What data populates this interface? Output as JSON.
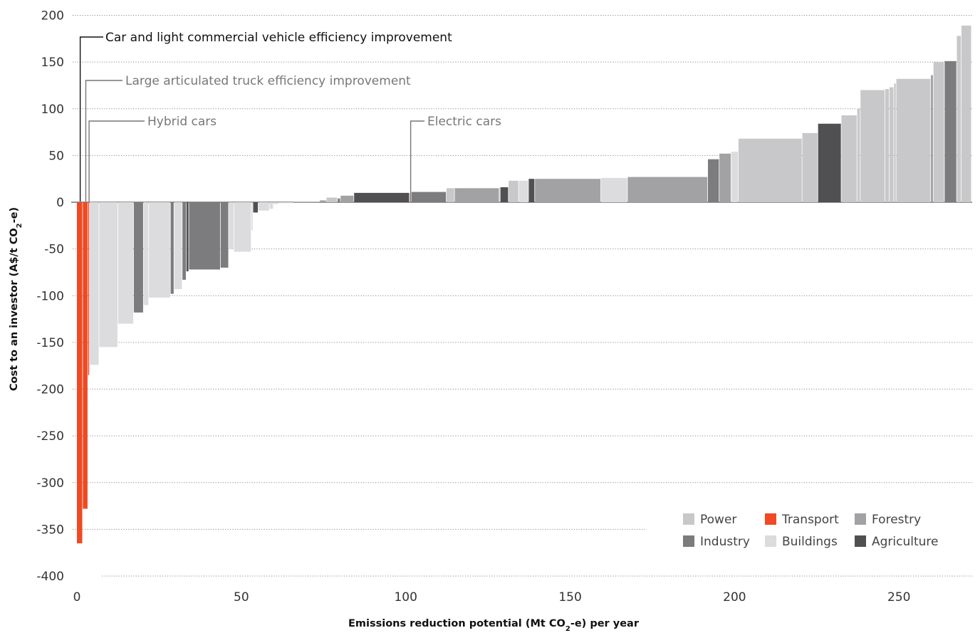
{
  "chart_data": {
    "type": "bar",
    "subtype": "marginal-abatement-cost-curve",
    "title": "",
    "xlabel": "Emissions reduction potential (Mt CO2-e) per year",
    "ylabel": "Cost to an investor (A$/t CO2-e)",
    "xlim": [
      0,
      273
    ],
    "ylim": [
      -400,
      200
    ],
    "x_ticks": [
      "0",
      "50",
      "100",
      "150",
      "200",
      "250"
    ],
    "y_ticks": [
      "200",
      "150",
      "100",
      "50",
      "0",
      "-50",
      "-100",
      "-150",
      "-200",
      "-250",
      "-300",
      "-350",
      "-400"
    ],
    "grid": "horizontal dotted",
    "legend_position": "bottom-right",
    "sector_colors": {
      "Power": "#c8c8ca",
      "Transport": "#ef4a24",
      "Forestry": "#a2a2a4",
      "Industry": "#7c7c7e",
      "Buildings": "#dcdcde",
      "Agriculture": "#505052"
    },
    "legend": [
      "Power",
      "Transport",
      "Forestry",
      "Industry",
      "Buildings",
      "Agriculture"
    ],
    "annotations": [
      {
        "text": "Car and light commercial vehicle efficiency improvement",
        "x": 1,
        "color": "#111111"
      },
      {
        "text": "Large articulated truck efficiency improvement",
        "x": 2.7,
        "color": "#777777"
      },
      {
        "text": "Hybrid cars",
        "x": 3.7,
        "color": "#777777"
      },
      {
        "text": "Electric cars",
        "x": 101.5,
        "color": "#777777"
      }
    ],
    "bars": [
      {
        "x0": 0,
        "x1": 1.8,
        "y": -365,
        "sector": "Transport"
      },
      {
        "x0": 1.8,
        "x1": 3.4,
        "y": -328,
        "sector": "Transport"
      },
      {
        "x0": 3.4,
        "x1": 3.9,
        "y": -185,
        "sector": "Transport"
      },
      {
        "x0": 3.9,
        "x1": 6.8,
        "y": -174,
        "sector": "Buildings"
      },
      {
        "x0": 6.8,
        "x1": 12.5,
        "y": -155,
        "sector": "Buildings"
      },
      {
        "x0": 12.5,
        "x1": 17.3,
        "y": -130,
        "sector": "Buildings"
      },
      {
        "x0": 17.3,
        "x1": 20.3,
        "y": -118,
        "sector": "Industry"
      },
      {
        "x0": 20.3,
        "x1": 21.9,
        "y": -110,
        "sector": "Buildings"
      },
      {
        "x0": 21.9,
        "x1": 28.5,
        "y": -102,
        "sector": "Buildings"
      },
      {
        "x0": 28.5,
        "x1": 29.6,
        "y": -98,
        "sector": "Industry"
      },
      {
        "x0": 29.6,
        "x1": 32.1,
        "y": -93,
        "sector": "Buildings"
      },
      {
        "x0": 32.1,
        "x1": 33.3,
        "y": -83,
        "sector": "Industry"
      },
      {
        "x0": 33.3,
        "x1": 34.1,
        "y": -74,
        "sector": "Agriculture"
      },
      {
        "x0": 34.1,
        "x1": 43.7,
        "y": -72,
        "sector": "Industry"
      },
      {
        "x0": 43.7,
        "x1": 46.2,
        "y": -70,
        "sector": "Industry"
      },
      {
        "x0": 46.2,
        "x1": 47.8,
        "y": -50,
        "sector": "Buildings"
      },
      {
        "x0": 47.8,
        "x1": 53.1,
        "y": -53,
        "sector": "Buildings"
      },
      {
        "x0": 53.1,
        "x1": 53.6,
        "y": -30,
        "sector": "Buildings"
      },
      {
        "x0": 53.6,
        "x1": 55.2,
        "y": -11,
        "sector": "Agriculture"
      },
      {
        "x0": 55.2,
        "x1": 58.6,
        "y": -9,
        "sector": "Buildings"
      },
      {
        "x0": 58.6,
        "x1": 59.8,
        "y": -7,
        "sector": "Buildings"
      },
      {
        "x0": 59.8,
        "x1": 61.2,
        "y": -2,
        "sector": "Buildings"
      },
      {
        "x0": 61.2,
        "x1": 66.1,
        "y": -1,
        "sector": "Buildings"
      },
      {
        "x0": 66.1,
        "x1": 73.9,
        "y": 1,
        "sector": "Power"
      },
      {
        "x0": 73.9,
        "x1": 75.9,
        "y": 2,
        "sector": "Forestry"
      },
      {
        "x0": 75.9,
        "x1": 79.3,
        "y": 5,
        "sector": "Power"
      },
      {
        "x0": 79.3,
        "x1": 80.2,
        "y": 4,
        "sector": "Industry"
      },
      {
        "x0": 80.2,
        "x1": 84.3,
        "y": 7,
        "sector": "Forestry"
      },
      {
        "x0": 84.3,
        "x1": 101.2,
        "y": 10,
        "sector": "Agriculture"
      },
      {
        "x0": 101.2,
        "x1": 101.5,
        "y": 10,
        "sector": "Power"
      },
      {
        "x0": 101.5,
        "x1": 101.8,
        "y": 11,
        "sector": "Transport"
      },
      {
        "x0": 101.8,
        "x1": 112.4,
        "y": 11,
        "sector": "Industry"
      },
      {
        "x0": 112.4,
        "x1": 114.9,
        "y": 15,
        "sector": "Power"
      },
      {
        "x0": 114.9,
        "x1": 128.5,
        "y": 15,
        "sector": "Forestry"
      },
      {
        "x0": 128.5,
        "x1": 128.8,
        "y": 16,
        "sector": "Power"
      },
      {
        "x0": 128.8,
        "x1": 131.3,
        "y": 16,
        "sector": "Agriculture"
      },
      {
        "x0": 131.3,
        "x1": 134.4,
        "y": 23,
        "sector": "Power"
      },
      {
        "x0": 134.4,
        "x1": 137.4,
        "y": 23,
        "sector": "Buildings"
      },
      {
        "x0": 137.4,
        "x1": 139.3,
        "y": 25,
        "sector": "Agriculture"
      },
      {
        "x0": 139.3,
        "x1": 159.4,
        "y": 25,
        "sector": "Forestry"
      },
      {
        "x0": 159.4,
        "x1": 167.5,
        "y": 26,
        "sector": "Buildings"
      },
      {
        "x0": 167.5,
        "x1": 191.9,
        "y": 27,
        "sector": "Forestry"
      },
      {
        "x0": 191.9,
        "x1": 195.4,
        "y": 46,
        "sector": "Industry"
      },
      {
        "x0": 195.4,
        "x1": 199,
        "y": 52,
        "sector": "Forestry"
      },
      {
        "x0": 199,
        "x1": 201.2,
        "y": 54,
        "sector": "Buildings"
      },
      {
        "x0": 201.2,
        "x1": 220.6,
        "y": 68,
        "sector": "Power"
      },
      {
        "x0": 220.6,
        "x1": 225.4,
        "y": 74,
        "sector": "Power"
      },
      {
        "x0": 225.4,
        "x1": 232.5,
        "y": 84,
        "sector": "Agriculture"
      },
      {
        "x0": 232.5,
        "x1": 237.3,
        "y": 93,
        "sector": "Power"
      },
      {
        "x0": 237.3,
        "x1": 238.3,
        "y": 100,
        "sector": "Power"
      },
      {
        "x0": 238.3,
        "x1": 245.8,
        "y": 120,
        "sector": "Power"
      },
      {
        "x0": 245.8,
        "x1": 247.1,
        "y": 121,
        "sector": "Power"
      },
      {
        "x0": 247.1,
        "x1": 248.5,
        "y": 123,
        "sector": "Power"
      },
      {
        "x0": 248.5,
        "x1": 249.2,
        "y": 127,
        "sector": "Power"
      },
      {
        "x0": 249.2,
        "x1": 259.7,
        "y": 132,
        "sector": "Power"
      },
      {
        "x0": 259.7,
        "x1": 260.5,
        "y": 136,
        "sector": "Forestry"
      },
      {
        "x0": 260.5,
        "x1": 263.9,
        "y": 150,
        "sector": "Power"
      },
      {
        "x0": 263.9,
        "x1": 267.6,
        "y": 151,
        "sector": "Industry"
      },
      {
        "x0": 267.6,
        "x1": 269,
        "y": 178,
        "sector": "Power"
      },
      {
        "x0": 269,
        "x1": 272.1,
        "y": 189,
        "sector": "Power"
      }
    ]
  }
}
